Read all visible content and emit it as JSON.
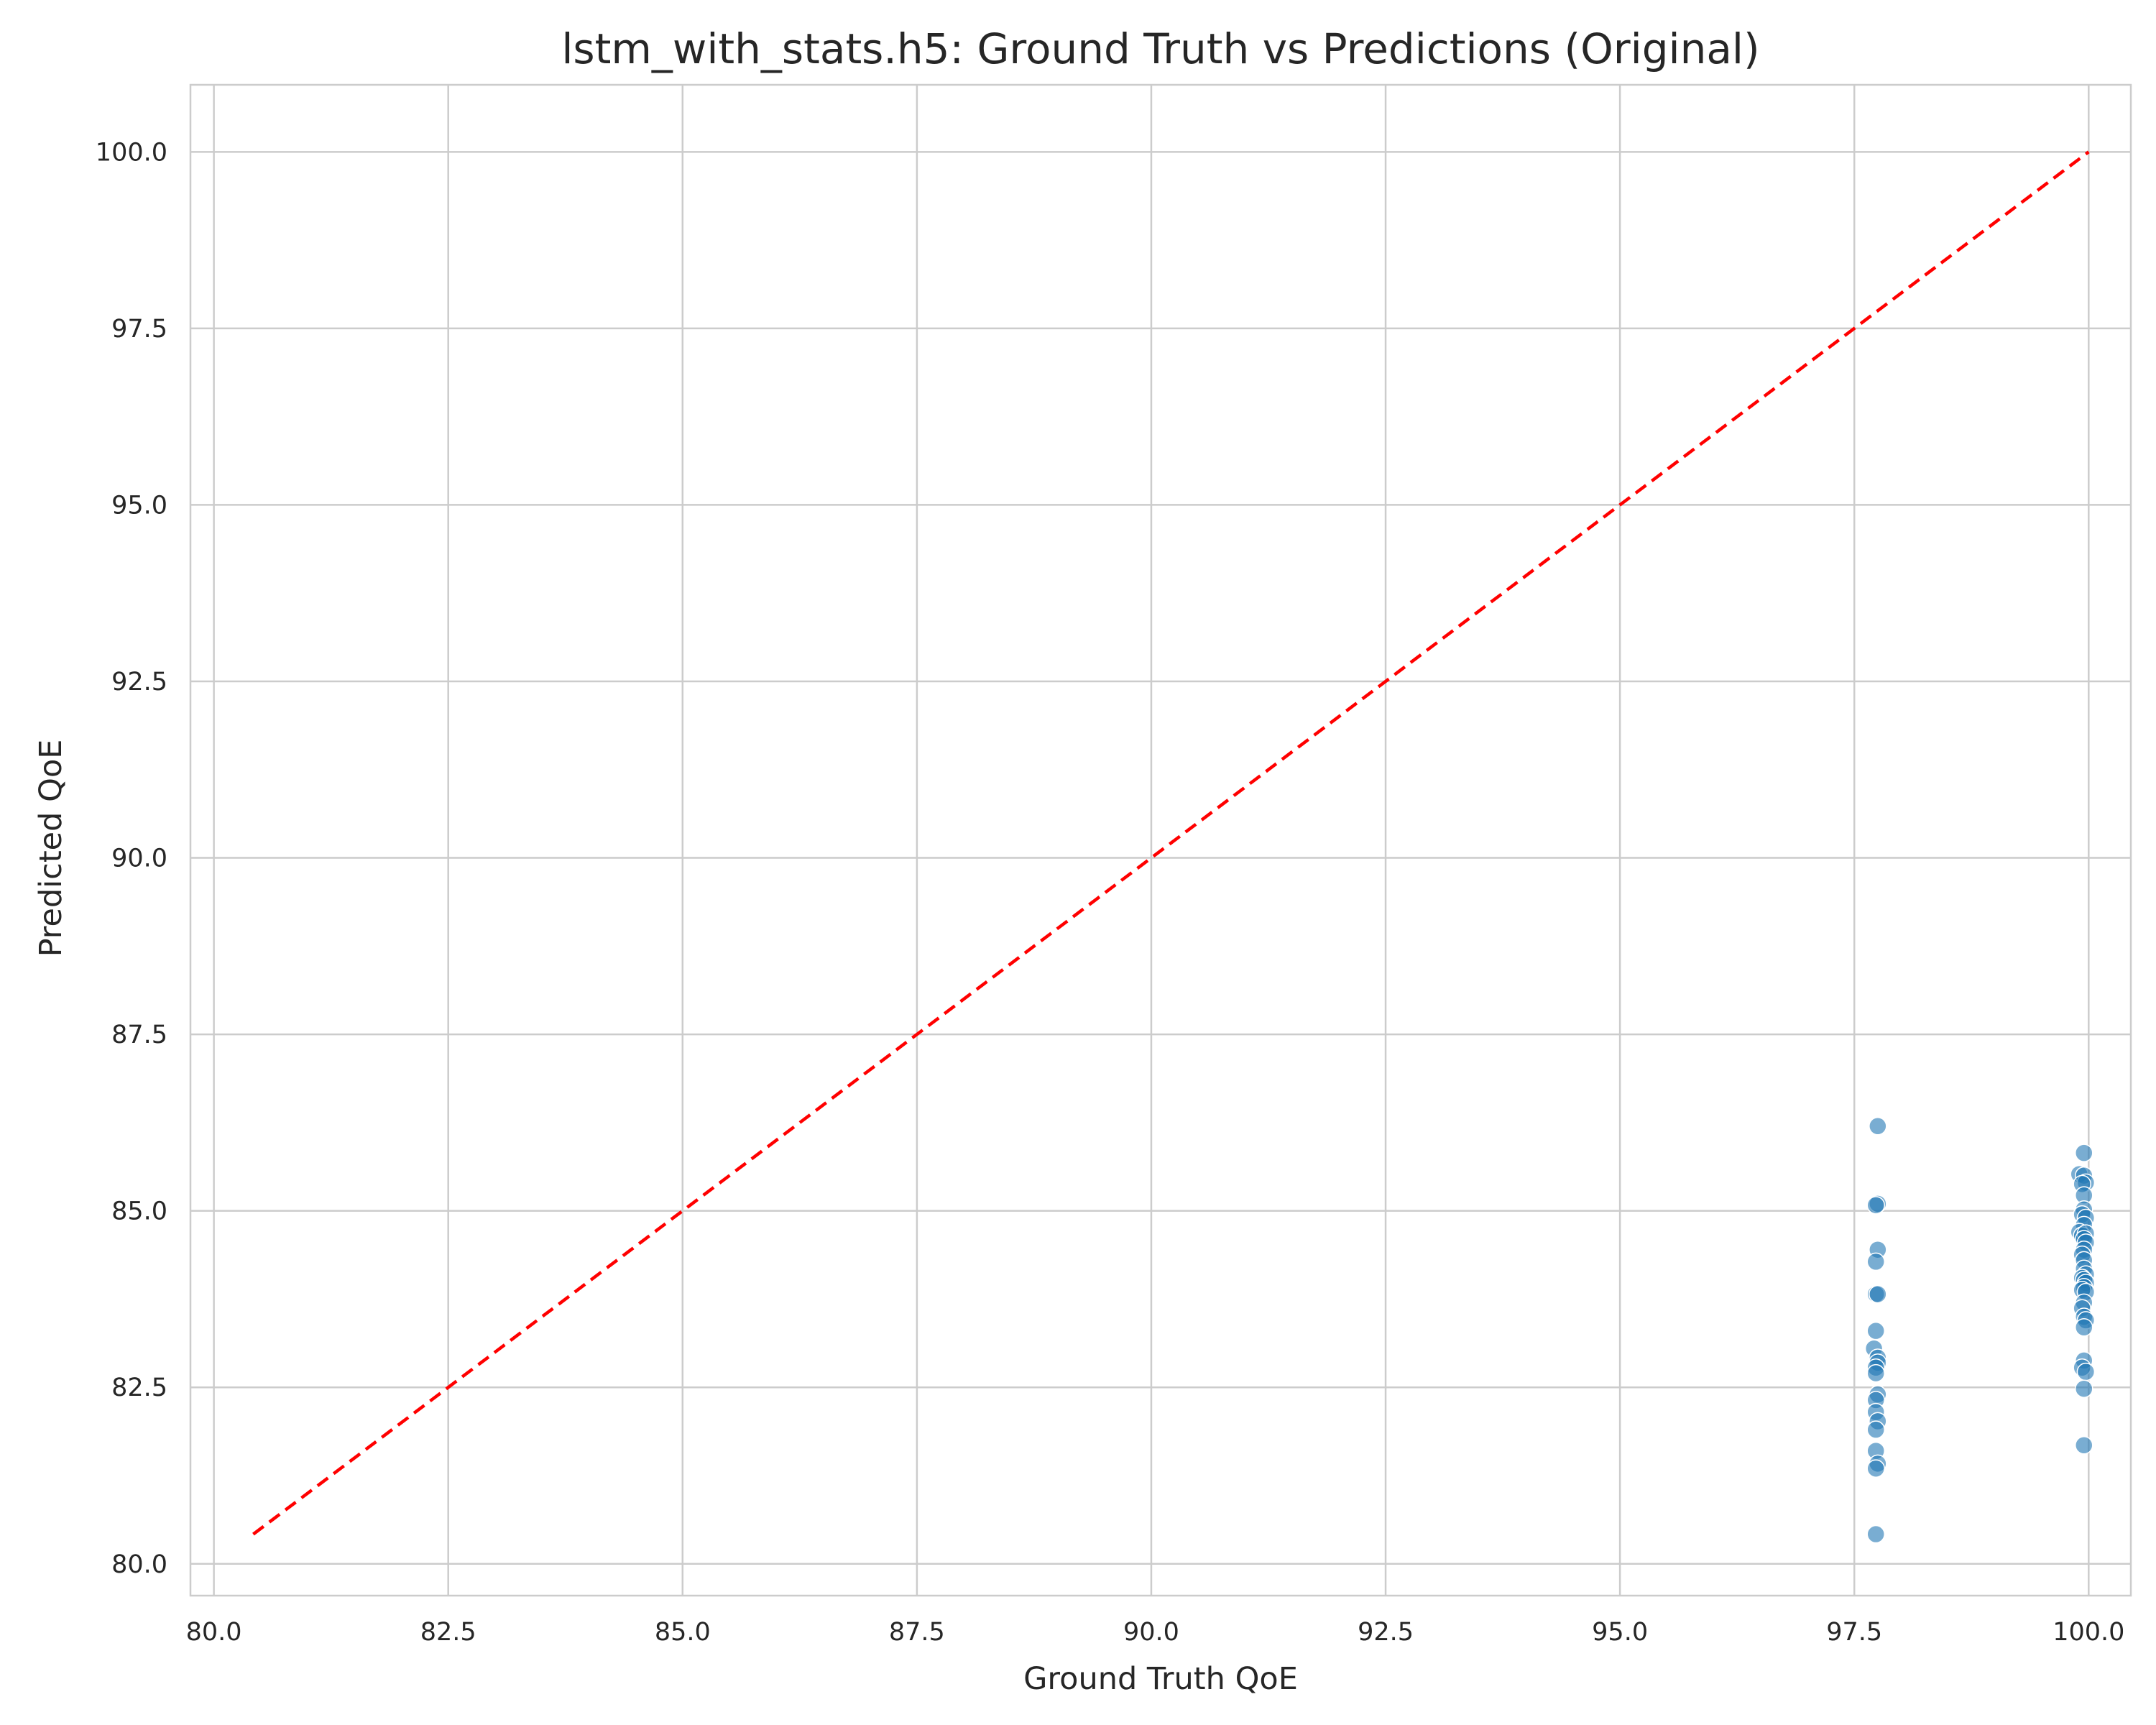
{
  "chart_data": {
    "type": "scatter",
    "title": "lstm_with_stats.h5: Ground Truth vs Predictions (Original)",
    "xlabel": "Ground Truth QoE",
    "ylabel": "Predicted QoE",
    "xlim": [
      79.75,
      100.45
    ],
    "ylim": [
      79.55,
      100.95
    ],
    "xticks": [
      "80.0",
      "82.5",
      "85.0",
      "87.5",
      "90.0",
      "92.5",
      "95.0",
      "97.5",
      "100.0"
    ],
    "yticks": [
      "80.0",
      "82.5",
      "85.0",
      "87.5",
      "90.0",
      "92.5",
      "95.0",
      "97.5",
      "100.0"
    ],
    "grid": true,
    "point_color": "#1f77b4",
    "reference_line": {
      "from": [
        80.42,
        80.42
      ],
      "to": [
        100.0,
        100.0
      ],
      "color": "#ff0000",
      "style": "dashed"
    },
    "series": [
      {
        "points": [
          [
            97.75,
            86.2
          ],
          [
            97.75,
            85.1
          ],
          [
            97.73,
            85.08
          ],
          [
            97.75,
            84.45
          ],
          [
            97.73,
            84.28
          ],
          [
            97.73,
            83.82
          ],
          [
            97.75,
            83.82
          ],
          [
            97.73,
            83.3
          ],
          [
            97.71,
            83.05
          ],
          [
            97.75,
            82.92
          ],
          [
            97.75,
            82.85
          ],
          [
            97.73,
            82.78
          ],
          [
            97.73,
            82.7
          ],
          [
            97.75,
            82.4
          ],
          [
            97.73,
            82.32
          ],
          [
            97.73,
            82.15
          ],
          [
            97.75,
            82.02
          ],
          [
            97.73,
            81.9
          ],
          [
            97.73,
            81.6
          ],
          [
            97.75,
            81.42
          ],
          [
            97.73,
            81.35
          ],
          [
            97.73,
            80.42
          ],
          [
            99.95,
            85.82
          ],
          [
            99.9,
            85.52
          ],
          [
            99.95,
            85.5
          ],
          [
            99.97,
            85.4
          ],
          [
            99.93,
            85.38
          ],
          [
            99.95,
            85.22
          ],
          [
            99.95,
            85.02
          ],
          [
            99.93,
            84.95
          ],
          [
            99.97,
            84.9
          ],
          [
            99.95,
            84.8
          ],
          [
            99.9,
            84.7
          ],
          [
            99.93,
            84.65
          ],
          [
            99.97,
            84.68
          ],
          [
            99.95,
            84.6
          ],
          [
            99.97,
            84.55
          ],
          [
            99.95,
            84.45
          ],
          [
            99.93,
            84.38
          ],
          [
            99.95,
            84.3
          ],
          [
            99.95,
            84.18
          ],
          [
            99.97,
            84.1
          ],
          [
            99.93,
            84.05
          ],
          [
            99.95,
            84.02
          ],
          [
            99.97,
            83.98
          ],
          [
            99.95,
            83.92
          ],
          [
            99.93,
            83.88
          ],
          [
            99.97,
            83.85
          ],
          [
            99.95,
            83.7
          ],
          [
            99.93,
            83.62
          ],
          [
            99.95,
            83.5
          ],
          [
            99.97,
            83.45
          ],
          [
            99.95,
            83.35
          ],
          [
            99.95,
            82.88
          ],
          [
            99.93,
            82.78
          ],
          [
            99.97,
            82.72
          ],
          [
            99.95,
            82.48
          ],
          [
            99.95,
            81.68
          ]
        ]
      }
    ]
  }
}
